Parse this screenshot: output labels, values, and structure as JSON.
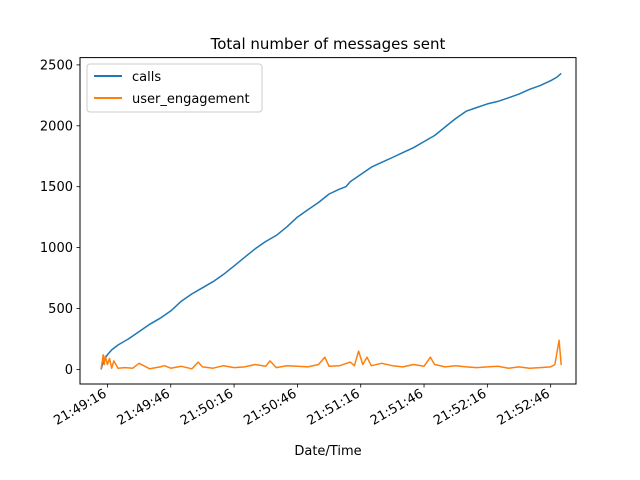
{
  "chart_data": {
    "type": "line",
    "title": "Total number of messages sent",
    "xlabel": "Date/Time",
    "ylabel": "",
    "x_tick_labels": [
      "21:49:16",
      "21:49:46",
      "21:50:16",
      "21:50:46",
      "21:51:16",
      "21:51:46",
      "21:52:16",
      "21:52:46"
    ],
    "x_tick_seconds": [
      0,
      30,
      60,
      90,
      120,
      150,
      180,
      210
    ],
    "x_range_seconds": [
      -13,
      222
    ],
    "y_ticks": [
      0,
      500,
      1000,
      1500,
      2000,
      2500
    ],
    "ylim": [
      -120,
      2560
    ],
    "grid": false,
    "legend": "upper left",
    "series": [
      {
        "name": "calls",
        "color": "#1f77b4",
        "x_seconds": [
          -3,
          -2,
          0,
          2,
          5,
          10,
          15,
          20,
          25,
          30,
          35,
          40,
          45,
          50,
          55,
          60,
          65,
          70,
          75,
          80,
          85,
          90,
          95,
          100,
          105,
          110,
          113,
          115,
          120,
          125,
          130,
          135,
          140,
          145,
          150,
          155,
          160,
          165,
          170,
          175,
          180,
          185,
          190,
          195,
          200,
          205,
          210,
          213,
          215
        ],
        "values": [
          0,
          60,
          120,
          160,
          200,
          250,
          310,
          370,
          420,
          480,
          560,
          620,
          670,
          720,
          780,
          850,
          920,
          990,
          1050,
          1100,
          1170,
          1250,
          1310,
          1370,
          1440,
          1480,
          1500,
          1540,
          1600,
          1660,
          1700,
          1740,
          1780,
          1820,
          1870,
          1920,
          1990,
          2060,
          2120,
          2150,
          2180,
          2200,
          2230,
          2260,
          2300,
          2330,
          2370,
          2400,
          2430
        ]
      },
      {
        "name": "user_engagement",
        "color": "#ff7f0e",
        "x_seconds": [
          -3,
          -2.5,
          -2,
          -1.5,
          -1,
          0,
          1,
          2,
          3,
          5,
          8,
          12,
          15,
          20,
          25,
          27,
          30,
          35,
          40,
          43,
          45,
          50,
          55,
          60,
          65,
          70,
          75,
          77,
          80,
          85,
          90,
          95,
          100,
          103,
          105,
          110,
          115,
          117,
          119,
          121,
          123,
          125,
          130,
          135,
          140,
          145,
          150,
          153,
          155,
          160,
          165,
          170,
          175,
          180,
          185,
          190,
          195,
          200,
          205,
          210,
          212,
          214,
          215
        ],
        "values": [
          5,
          60,
          120,
          40,
          110,
          40,
          90,
          10,
          70,
          10,
          15,
          10,
          50,
          5,
          20,
          30,
          10,
          25,
          5,
          60,
          20,
          10,
          30,
          15,
          20,
          40,
          25,
          70,
          15,
          30,
          25,
          20,
          40,
          100,
          25,
          30,
          60,
          30,
          150,
          40,
          100,
          30,
          50,
          30,
          20,
          40,
          25,
          100,
          40,
          20,
          30,
          20,
          15,
          20,
          25,
          10,
          20,
          10,
          15,
          20,
          40,
          240,
          35
        ]
      }
    ]
  }
}
